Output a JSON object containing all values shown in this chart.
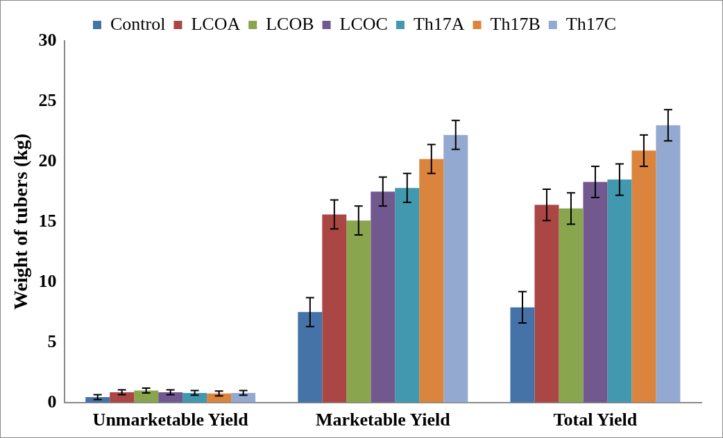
{
  "chart_data": {
    "type": "bar",
    "ylabel": "Weight of tubers (kg)",
    "categories": [
      "Unmarketable Yield",
      "Marketable Yield",
      "Total Yield"
    ],
    "ylim": [
      0,
      30
    ],
    "yticks": [
      0,
      5,
      10,
      15,
      20,
      25,
      30
    ],
    "grid": false,
    "legend": "top",
    "series": [
      {
        "name": "Control",
        "color": "#4572a7",
        "values": [
          0.45,
          7.5,
          7.9
        ],
        "errors": [
          0.2,
          1.2,
          1.3
        ]
      },
      {
        "name": "LCOA",
        "color": "#aa4643",
        "values": [
          0.85,
          15.6,
          16.4
        ],
        "errors": [
          0.2,
          1.2,
          1.3
        ]
      },
      {
        "name": "LCOB",
        "color": "#89a54e",
        "values": [
          1.0,
          15.1,
          16.1
        ],
        "errors": [
          0.2,
          1.2,
          1.3
        ]
      },
      {
        "name": "LCOC",
        "color": "#71588f",
        "values": [
          0.85,
          17.5,
          18.3
        ],
        "errors": [
          0.2,
          1.2,
          1.3
        ]
      },
      {
        "name": "Th17A",
        "color": "#4198af",
        "values": [
          0.8,
          17.8,
          18.5
        ],
        "errors": [
          0.2,
          1.2,
          1.3
        ]
      },
      {
        "name": "Th17B",
        "color": "#db843d",
        "values": [
          0.75,
          20.2,
          20.9
        ],
        "errors": [
          0.2,
          1.2,
          1.3
        ]
      },
      {
        "name": "Th17C",
        "color": "#93a9cf",
        "values": [
          0.8,
          22.2,
          23.0
        ],
        "errors": [
          0.2,
          1.2,
          1.3
        ]
      }
    ]
  }
}
